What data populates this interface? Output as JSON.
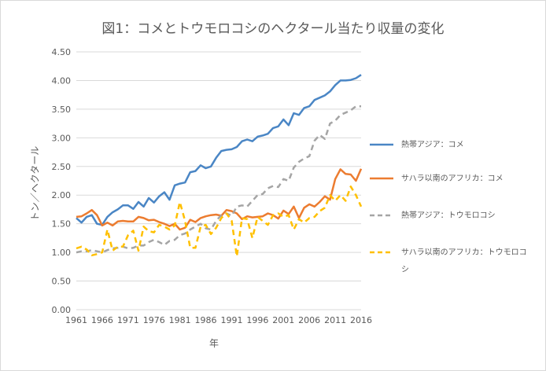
{
  "chart_data": {
    "type": "line",
    "title": "図1：コメとトウモロコシのヘクタール当たり収量の変化",
    "xlabel": "年",
    "ylabel": "トン／ヘクタール",
    "ylim": [
      0,
      4.5
    ],
    "yticks": [
      "0.00",
      "0.50",
      "1.00",
      "1.50",
      "2.00",
      "2.50",
      "3.00",
      "3.50",
      "4.00",
      "4.50"
    ],
    "xticks": [
      "1961",
      "1966",
      "1971",
      "1976",
      "1981",
      "1986",
      "1991",
      "1996",
      "2001",
      "2006",
      "2011",
      "2016"
    ],
    "grid": true,
    "legend_position": "right",
    "x": [
      1961,
      1962,
      1963,
      1964,
      1965,
      1966,
      1967,
      1968,
      1969,
      1970,
      1971,
      1972,
      1973,
      1974,
      1975,
      1976,
      1977,
      1978,
      1979,
      1980,
      1981,
      1982,
      1983,
      1984,
      1985,
      1986,
      1987,
      1988,
      1989,
      1990,
      1991,
      1992,
      1993,
      1994,
      1995,
      1996,
      1997,
      1998,
      1999,
      2000,
      2001,
      2002,
      2003,
      2004,
      2005,
      2006,
      2007,
      2008,
      2009,
      2010,
      2011,
      2012,
      2013,
      2014,
      2015,
      2016
    ],
    "series": [
      {
        "name": "熱帯アジア：コメ",
        "color": "#4a86c5",
        "dash": "solid",
        "values": [
          1.6,
          1.52,
          1.62,
          1.65,
          1.5,
          1.48,
          1.62,
          1.7,
          1.75,
          1.82,
          1.82,
          1.76,
          1.88,
          1.8,
          1.95,
          1.87,
          1.98,
          2.05,
          1.92,
          2.17,
          2.2,
          2.22,
          2.4,
          2.42,
          2.52,
          2.47,
          2.5,
          2.65,
          2.77,
          2.79,
          2.8,
          2.84,
          2.94,
          2.97,
          2.94,
          3.02,
          3.04,
          3.07,
          3.17,
          3.2,
          3.32,
          3.22,
          3.43,
          3.4,
          3.52,
          3.55,
          3.66,
          3.7,
          3.74,
          3.81,
          3.92,
          4.0,
          4.0,
          4.01,
          4.04,
          4.1
        ]
      },
      {
        "name": "サハラ以南のアフリカ：コメ",
        "color": "#ec7c30",
        "dash": "solid",
        "values": [
          1.62,
          1.63,
          1.68,
          1.74,
          1.65,
          1.47,
          1.52,
          1.47,
          1.54,
          1.55,
          1.54,
          1.54,
          1.62,
          1.6,
          1.56,
          1.57,
          1.53,
          1.5,
          1.46,
          1.5,
          1.4,
          1.43,
          1.57,
          1.53,
          1.6,
          1.63,
          1.65,
          1.66,
          1.64,
          1.74,
          1.72,
          1.68,
          1.58,
          1.63,
          1.61,
          1.62,
          1.63,
          1.68,
          1.65,
          1.59,
          1.73,
          1.67,
          1.8,
          1.6,
          1.78,
          1.84,
          1.8,
          1.88,
          1.98,
          1.92,
          2.28,
          2.45,
          2.37,
          2.36,
          2.25,
          2.46
        ]
      },
      {
        "name": "熱帯アジア：トウモロコシ",
        "color": "#a5a5a5",
        "dash": "dashed",
        "values": [
          1.0,
          1.02,
          1.02,
          1.04,
          1.02,
          1.0,
          1.04,
          1.07,
          1.08,
          1.1,
          1.07,
          1.08,
          1.12,
          1.12,
          1.18,
          1.22,
          1.18,
          1.13,
          1.2,
          1.22,
          1.3,
          1.33,
          1.4,
          1.45,
          1.5,
          1.42,
          1.4,
          1.55,
          1.65,
          1.68,
          1.64,
          1.8,
          1.82,
          1.8,
          1.9,
          2.0,
          2.02,
          2.12,
          2.16,
          2.14,
          2.28,
          2.25,
          2.48,
          2.58,
          2.64,
          2.68,
          2.95,
          3.05,
          2.98,
          3.25,
          3.3,
          3.4,
          3.44,
          3.48,
          3.55,
          3.55
        ]
      },
      {
        "name": "サハラ以南のアフリカ：トウモロコシ",
        "color": "#ffc000",
        "dash": "dashed",
        "values": [
          1.07,
          1.1,
          1.05,
          0.95,
          0.97,
          1.0,
          1.4,
          1.03,
          1.1,
          1.1,
          1.3,
          1.38,
          1.03,
          1.45,
          1.37,
          1.35,
          1.48,
          1.45,
          1.4,
          1.47,
          1.88,
          1.55,
          1.08,
          1.08,
          1.45,
          1.48,
          1.32,
          1.43,
          1.6,
          1.68,
          1.55,
          0.93,
          1.6,
          1.58,
          1.25,
          1.62,
          1.55,
          1.48,
          1.65,
          1.68,
          1.62,
          1.65,
          1.4,
          1.58,
          1.52,
          1.6,
          1.62,
          1.72,
          1.78,
          2.0,
          1.9,
          2.0,
          1.9,
          2.15,
          2.0,
          1.8
        ]
      }
    ]
  }
}
